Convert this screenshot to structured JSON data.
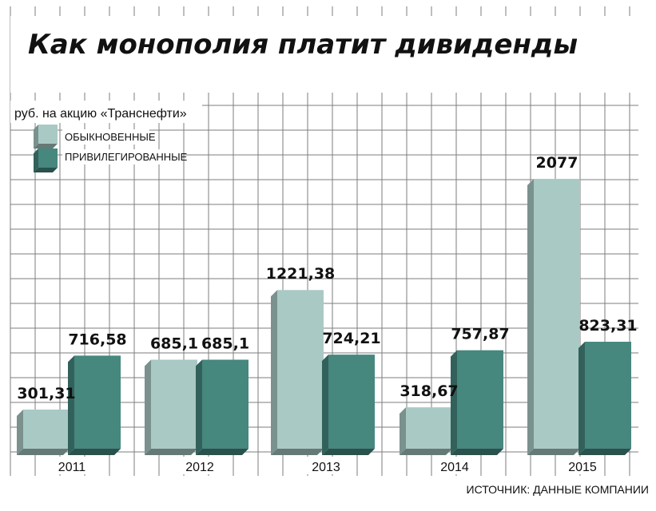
{
  "chart_data": {
    "type": "bar",
    "title": "Как монополия платит дивиденды",
    "unit_label": "руб. на акцию «Транснефти»",
    "categories": [
      "2011",
      "2012",
      "2013",
      "2014",
      "2015"
    ],
    "series": [
      {
        "name": "ОБЫКНОВЕННЫЕ",
        "values": [
          301.31,
          685.1,
          1221.38,
          318.67,
          2077
        ],
        "labels": [
          "301,31",
          "685,1",
          "1221,38",
          "318,67",
          "2077"
        ],
        "color": "#a9c9c5"
      },
      {
        "name": "ПРИВИЛЕГИРОВАННЫЕ",
        "values": [
          716.58,
          685.1,
          724.21,
          757.87,
          823.31
        ],
        "labels": [
          "716,58",
          "685,1",
          "724,21",
          "757,87",
          "823,31"
        ],
        "color": "#46877e"
      }
    ],
    "ylim": [
      0,
      2077
    ],
    "grid": true,
    "legend": "top-left",
    "source": "ИСТОЧНИК: ДАННЫЕ КОМПАНИИ"
  },
  "colors": {
    "light_bar": "#a9c9c5",
    "dark_bar": "#46877e",
    "grid": "#7d7d7d",
    "text": "#111111"
  }
}
